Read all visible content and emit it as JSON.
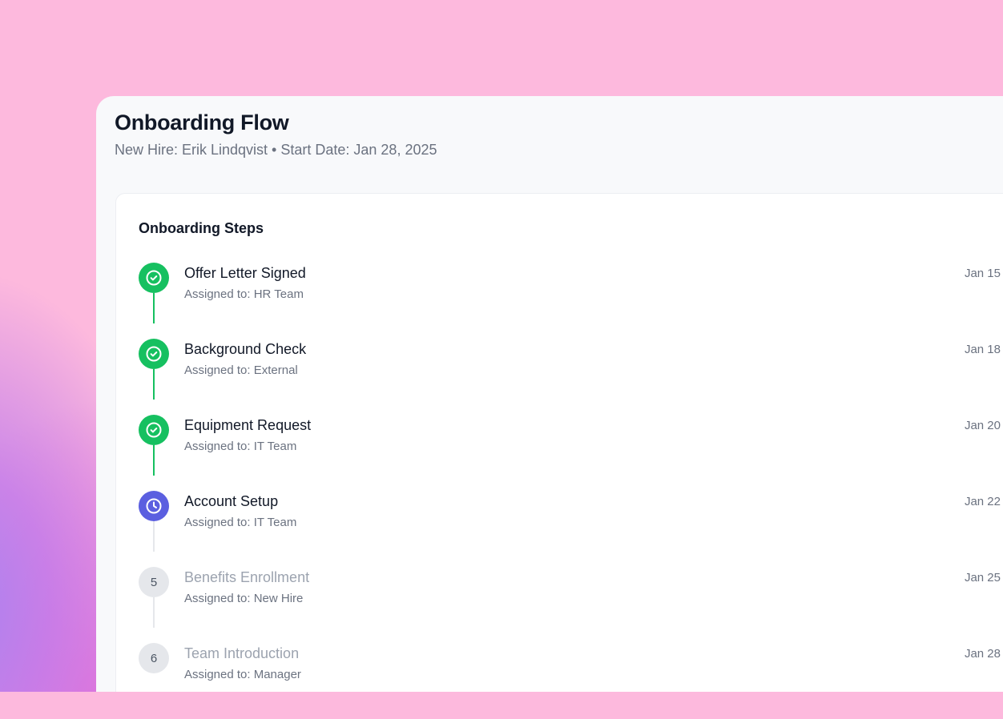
{
  "header": {
    "title": "Onboarding Flow",
    "subtitle": "New Hire: Erik Lindqvist • Start Date: Jan 28, 2025"
  },
  "card": {
    "title": "Onboarding Steps"
  },
  "colors": {
    "complete": "#16c060",
    "in_progress": "#5b5fe0",
    "pending": "#e5e7eb",
    "line_pending": "#e5e7eb"
  },
  "steps": [
    {
      "title": "Offer Letter Signed",
      "assigned": "Assigned to: HR Team",
      "date": "Jan 15",
      "status": "complete",
      "icon": "check-circle-icon"
    },
    {
      "title": "Background Check",
      "assigned": "Assigned to: External",
      "date": "Jan 18",
      "status": "complete",
      "icon": "check-circle-icon"
    },
    {
      "title": "Equipment Request",
      "assigned": "Assigned to: IT Team",
      "date": "Jan 20",
      "status": "complete",
      "icon": "check-circle-icon"
    },
    {
      "title": "Account Setup",
      "assigned": "Assigned to: IT Team",
      "date": "Jan 22",
      "status": "in_progress",
      "icon": "clock-icon"
    },
    {
      "title": "Benefits Enrollment",
      "assigned": "Assigned to: New Hire",
      "date": "Jan 25",
      "status": "pending",
      "number": "5"
    },
    {
      "title": "Team Introduction",
      "assigned": "Assigned to: Manager",
      "date": "Jan 28",
      "status": "pending",
      "number": "6"
    }
  ]
}
